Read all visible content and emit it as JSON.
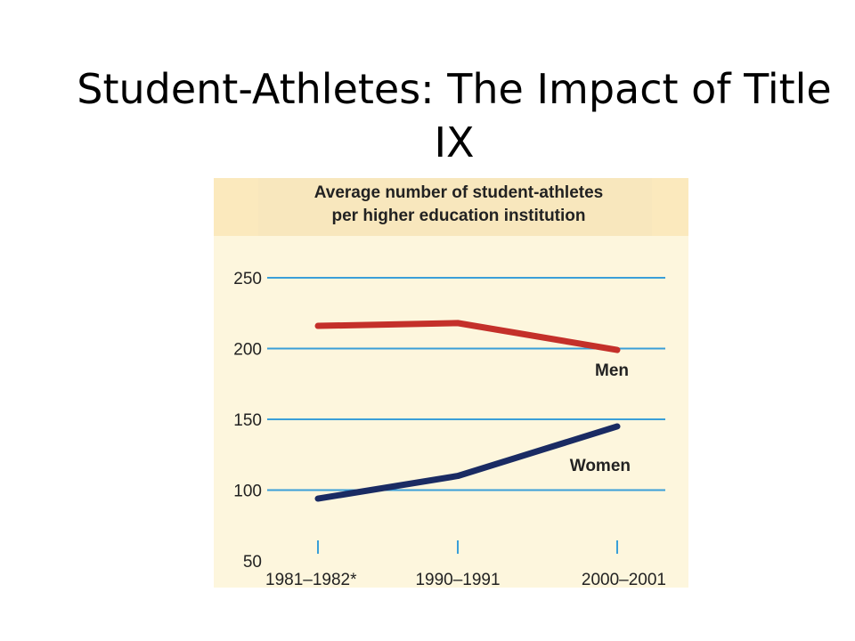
{
  "slide": {
    "title": "Student-Athletes: The Impact of Title IX"
  },
  "chart_data": {
    "type": "line",
    "title": "Average number of student-athletes per higher education institution",
    "title_lines": [
      "Average number of student-athletes",
      "per higher education institution"
    ],
    "categories": [
      "1981–1982*",
      "1990–1991",
      "2000–2001"
    ],
    "series": [
      {
        "name": "Men",
        "values": [
          216,
          218,
          199
        ],
        "color": "#c4302a"
      },
      {
        "name": "Women",
        "values": [
          94,
          110,
          145
        ],
        "color": "#1a2b63"
      }
    ],
    "yticks": [
      250,
      200,
      150,
      100,
      50
    ],
    "ylim": [
      50,
      250
    ],
    "grid": true,
    "gridline_color": "#3a9fd8",
    "panel_background": "#fdf6dd"
  }
}
